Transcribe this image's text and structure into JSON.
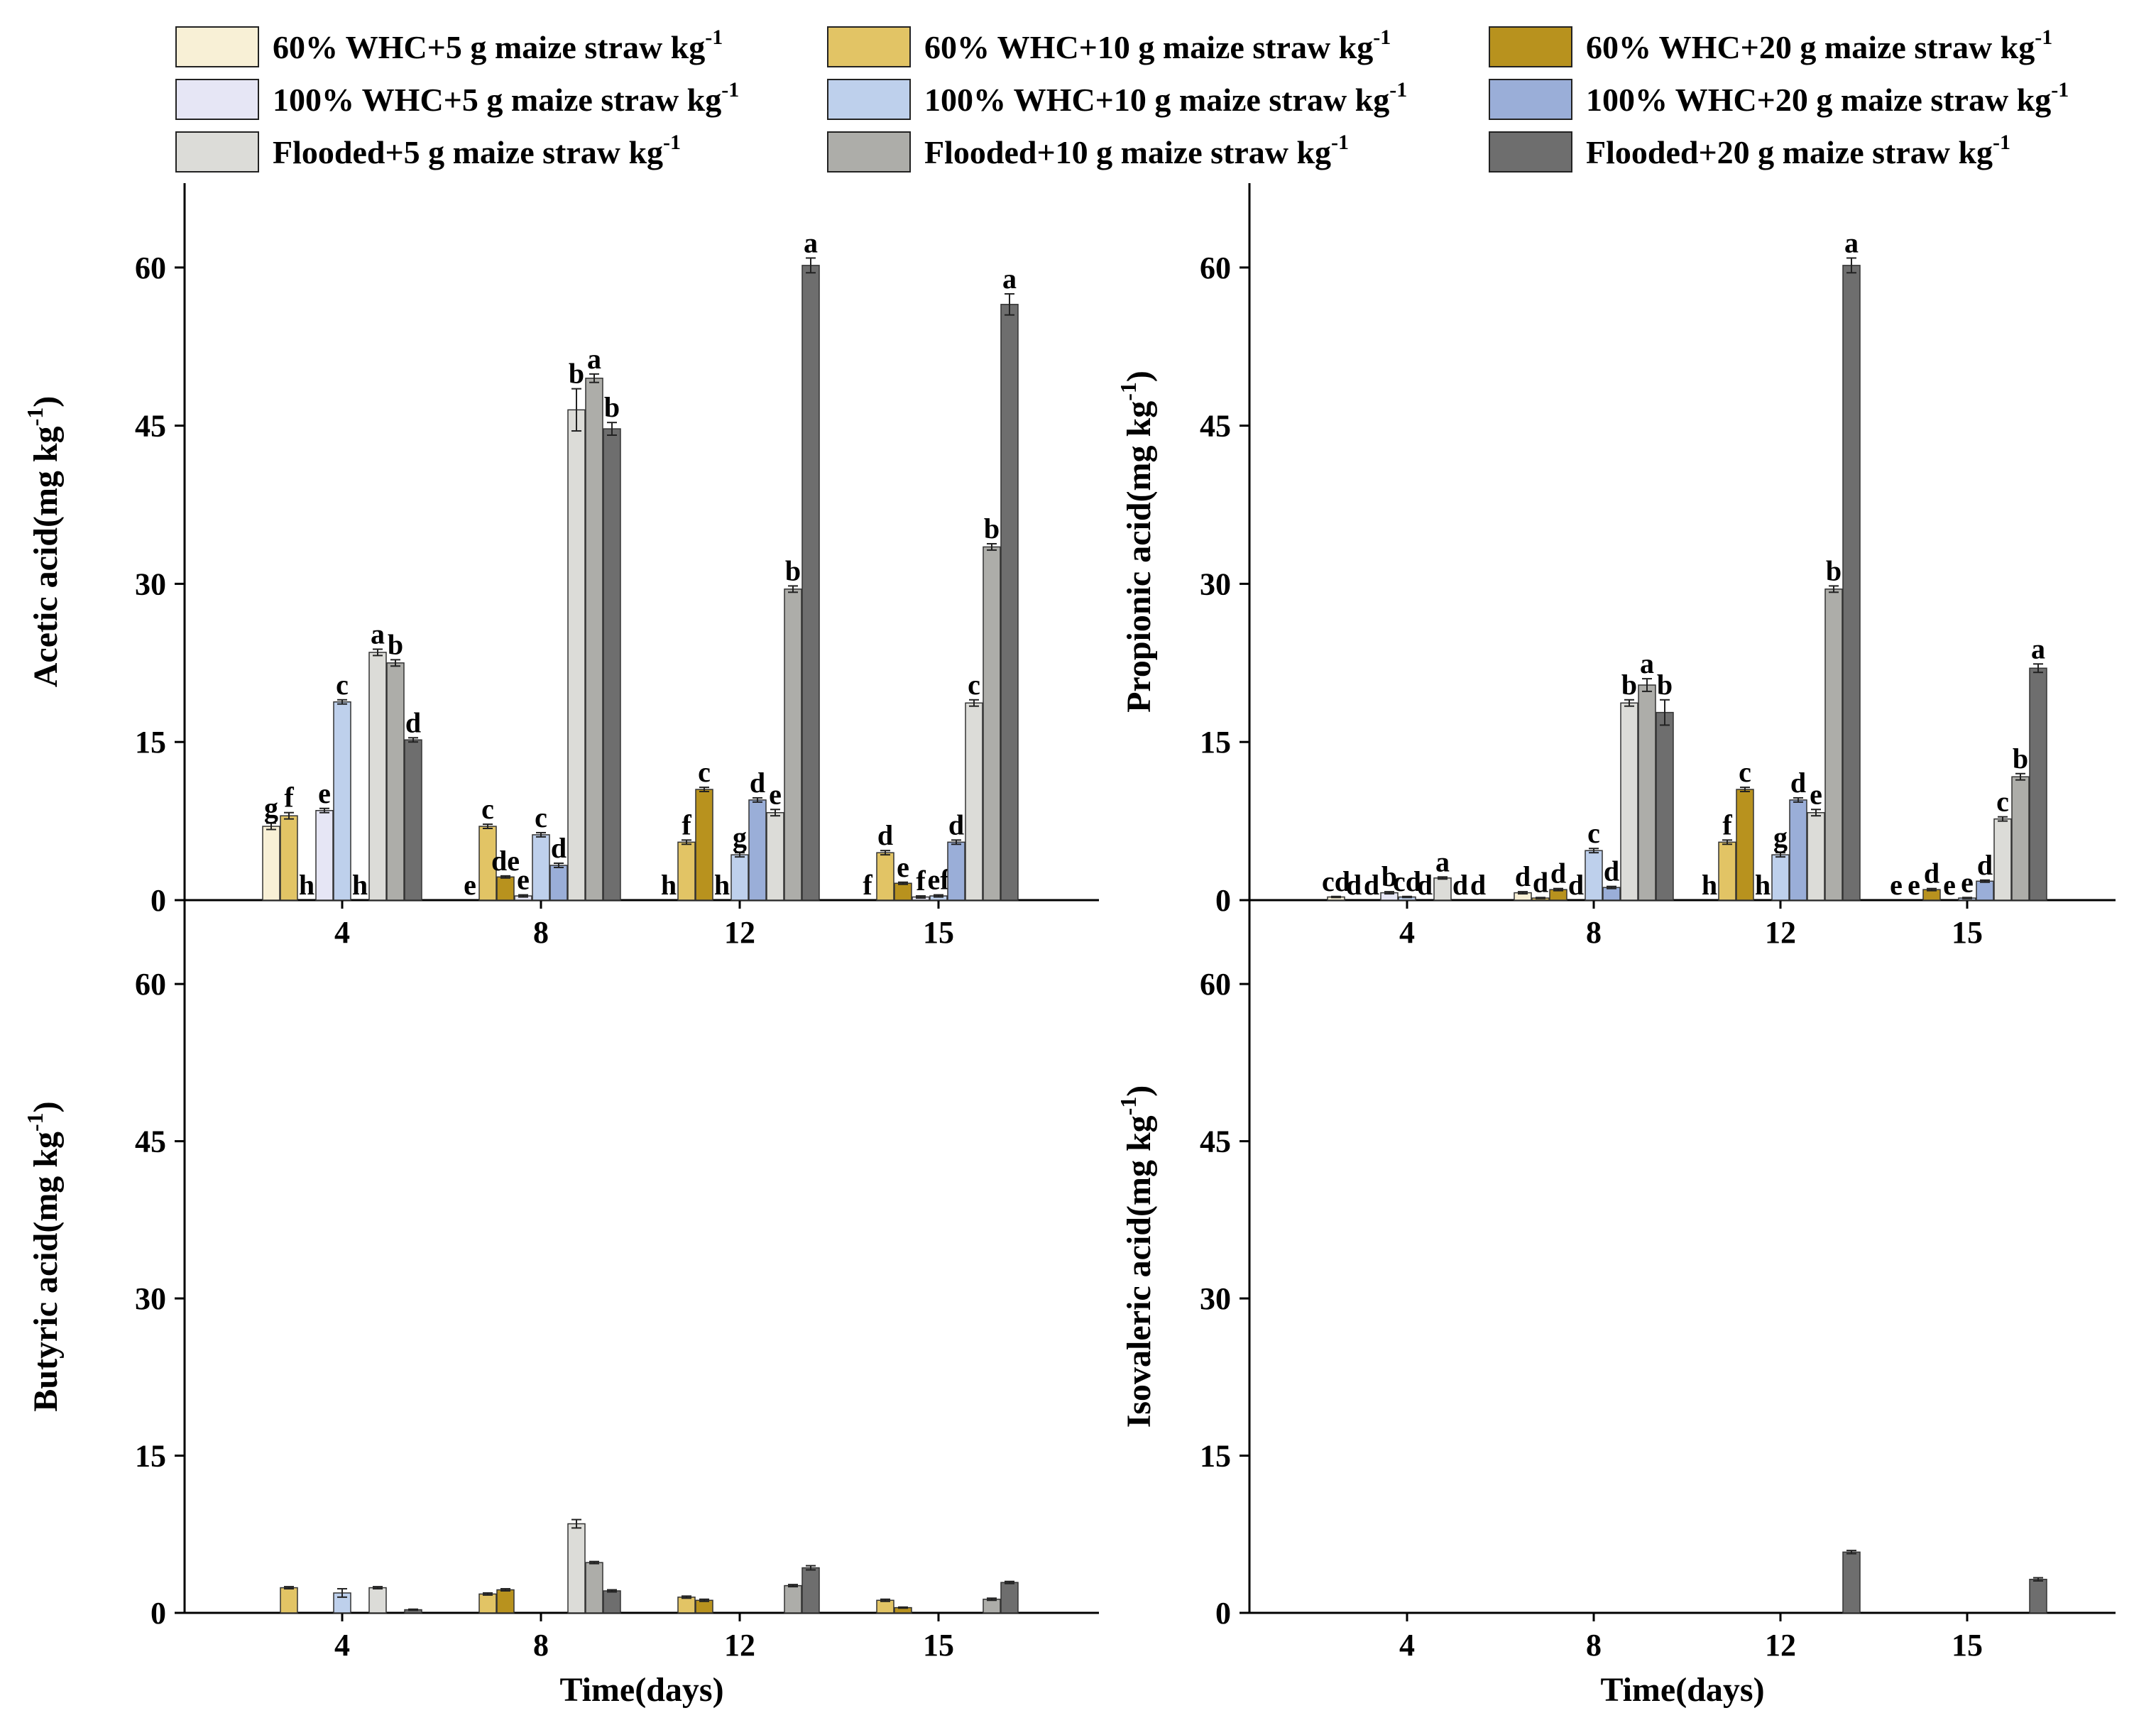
{
  "legend": {
    "items": [
      {
        "label": "60% WHC+5 g maize straw kg",
        "sup": "-1",
        "color": "#F8F0D6"
      },
      {
        "label": "60% WHC+10 g maize straw kg",
        "sup": "-1",
        "color": "#E2C465"
      },
      {
        "label": "60% WHC+20 g maize straw kg",
        "sup": "-1",
        "color": "#B8921E"
      },
      {
        "label": "100% WHC+5 g maize straw kg",
        "sup": "-1",
        "color": "#E6E6F5"
      },
      {
        "label": "100% WHC+10 g maize straw kg",
        "sup": "-1",
        "color": "#BED0EC"
      },
      {
        "label": "100% WHC+20 g maize straw kg",
        "sup": "-1",
        "color": "#9AAED8"
      },
      {
        "label": "Flooded+5 g maize straw kg",
        "sup": "-1",
        "color": "#DCDCD8"
      },
      {
        "label": "Flooded+10 g maize straw kg",
        "sup": "-1",
        "color": "#ADADA9"
      },
      {
        "label": "Flooded+20 g maize straw kg",
        "sup": "-1",
        "color": "#6E6E6E"
      }
    ]
  },
  "chart_data": [
    {
      "type": "bar",
      "panel": "top-left",
      "ylabel": "Acetic acid(mg kg",
      "ylabel_sup": "-1",
      "ylabel_close": ")",
      "xlabel": "",
      "categories": [
        "4",
        "8",
        "12",
        "15"
      ],
      "yticks": [
        "0",
        "15",
        "30",
        "45",
        "60"
      ],
      "ylim": [
        0,
        68
      ],
      "series": [
        {
          "name": "60% WHC+5 g maize straw kg-1",
          "values": [
            7.0,
            0,
            0,
            0
          ],
          "errors": [
            0.3,
            0,
            0,
            0
          ],
          "letters": [
            "g",
            "e",
            "h",
            "f"
          ]
        },
        {
          "name": "60% WHC+10 g maize straw kg-1",
          "values": [
            8.0,
            7.0,
            5.5,
            4.5
          ],
          "errors": [
            0.3,
            0.2,
            0.2,
            0.2
          ],
          "letters": [
            "f",
            "c",
            "f",
            "d"
          ]
        },
        {
          "name": "60% WHC+20 g maize straw kg-1",
          "values": [
            0,
            2.2,
            10.5,
            1.6
          ],
          "errors": [
            0,
            0.1,
            0.2,
            0.1
          ],
          "letters": [
            "h",
            "de",
            "c",
            "e"
          ]
        },
        {
          "name": "100% WHC+5 g maize straw kg-1",
          "values": [
            8.5,
            0.4,
            0,
            0.3
          ],
          "errors": [
            0.2,
            0.1,
            0,
            0.1
          ],
          "letters": [
            "e",
            "e",
            "h",
            "f"
          ]
        },
        {
          "name": "100% WHC+10 g maize straw kg-1",
          "values": [
            18.8,
            6.2,
            4.3,
            0.4
          ],
          "errors": [
            0.2,
            0.2,
            0.2,
            0.1
          ],
          "letters": [
            "c",
            "c",
            "g",
            "ef"
          ]
        },
        {
          "name": "100% WHC+20 g maize straw kg-1",
          "values": [
            0,
            3.3,
            9.5,
            5.5
          ],
          "errors": [
            0,
            0.2,
            0.2,
            0.2
          ],
          "letters": [
            "h",
            "d",
            "d",
            "d"
          ]
        },
        {
          "name": "Flooded+5 g maize straw kg-1",
          "values": [
            23.5,
            46.5,
            8.3,
            18.7
          ],
          "errors": [
            0.3,
            2.0,
            0.3,
            0.3
          ],
          "letters": [
            "a",
            "b",
            "e",
            "c"
          ]
        },
        {
          "name": "Flooded+10 g maize straw kg-1",
          "values": [
            22.5,
            49.5,
            29.5,
            33.5
          ],
          "errors": [
            0.3,
            0.4,
            0.3,
            0.3
          ],
          "letters": [
            "b",
            "a",
            "b",
            "b"
          ]
        },
        {
          "name": "Flooded+20 g maize straw kg-1",
          "values": [
            15.2,
            44.7,
            60.2,
            56.5
          ],
          "errors": [
            0.2,
            0.6,
            0.7,
            1.0
          ],
          "letters": [
            "d",
            "b",
            "a",
            "a"
          ]
        }
      ]
    },
    {
      "type": "bar",
      "panel": "top-right",
      "ylabel": "Propionic acid(mg kg",
      "ylabel_sup": "-1",
      "ylabel_close": ")",
      "xlabel": "",
      "categories": [
        "4",
        "8",
        "12",
        "15"
      ],
      "yticks": [
        "0",
        "15",
        "30",
        "45",
        "60"
      ],
      "ylim": [
        0,
        68
      ],
      "series": [
        {
          "name": "60% WHC+5 g maize straw kg-1",
          "values": [
            0.3,
            0.7,
            0,
            0
          ],
          "errors": [
            0.05,
            0.1,
            0,
            0
          ],
          "letters": [
            "cd",
            "d",
            "h",
            "e"
          ]
        },
        {
          "name": "60% WHC+10 g maize straw kg-1",
          "values": [
            0,
            0.2,
            5.5,
            0
          ],
          "errors": [
            0,
            0.05,
            0.2,
            0
          ],
          "letters": [
            "d",
            "d",
            "f",
            "e"
          ]
        },
        {
          "name": "60% WHC+20 g maize straw kg-1",
          "values": [
            0,
            1.0,
            10.5,
            1.0
          ],
          "errors": [
            0,
            0.1,
            0.2,
            0.1
          ],
          "letters": [
            "d",
            "d",
            "c",
            "d"
          ]
        },
        {
          "name": "100% WHC+5 g maize straw kg-1",
          "values": [
            0.7,
            0,
            0,
            0
          ],
          "errors": [
            0.1,
            0,
            0,
            0
          ],
          "letters": [
            "b",
            "d",
            "h",
            "e"
          ]
        },
        {
          "name": "100% WHC+10 g maize straw kg-1",
          "values": [
            0.3,
            4.7,
            4.3,
            0.2
          ],
          "errors": [
            0.05,
            0.2,
            0.2,
            0.05
          ],
          "letters": [
            "cd",
            "c",
            "g",
            "e"
          ]
        },
        {
          "name": "100% WHC+20 g maize straw kg-1",
          "values": [
            0,
            1.2,
            9.5,
            1.8
          ],
          "errors": [
            0,
            0.1,
            0.2,
            0.1
          ],
          "letters": [
            "d",
            "d",
            "d",
            "d"
          ]
        },
        {
          "name": "Flooded+5 g maize straw kg-1",
          "values": [
            2.1,
            18.7,
            8.3,
            7.7
          ],
          "errors": [
            0.1,
            0.3,
            0.3,
            0.2
          ],
          "letters": [
            "a",
            "b",
            "e",
            "c"
          ]
        },
        {
          "name": "Flooded+10 g maize straw kg-1",
          "values": [
            0,
            20.4,
            29.5,
            11.7
          ],
          "errors": [
            0,
            0.6,
            0.3,
            0.3
          ],
          "letters": [
            "d",
            "a",
            "b",
            "b"
          ]
        },
        {
          "name": "Flooded+20 g maize straw kg-1",
          "values": [
            0,
            17.8,
            60.2,
            22.0
          ],
          "errors": [
            0,
            1.2,
            0.7,
            0.4
          ],
          "letters": [
            "d",
            "b",
            "a",
            "a"
          ]
        }
      ]
    },
    {
      "type": "bar",
      "panel": "bottom-left",
      "ylabel": "Butyric acid(mg kg",
      "ylabel_sup": "-1",
      "ylabel_close": ")",
      "xlabel": "Time(days)",
      "categories": [
        "4",
        "8",
        "12",
        "15"
      ],
      "yticks": [
        "0",
        "15",
        "30",
        "45",
        "60"
      ],
      "ylim": [
        0,
        68
      ],
      "series": [
        {
          "name": "60% WHC+5 g maize straw kg-1",
          "values": [
            0,
            0,
            0,
            0
          ],
          "errors": [
            0,
            0,
            0,
            0
          ],
          "letters": []
        },
        {
          "name": "60% WHC+10 g maize straw kg-1",
          "values": [
            2.4,
            1.8,
            1.5,
            1.2
          ],
          "errors": [
            0.1,
            0.1,
            0.1,
            0.1
          ],
          "letters": []
        },
        {
          "name": "60% WHC+20 g maize straw kg-1",
          "values": [
            0,
            2.2,
            1.2,
            0.5
          ],
          "errors": [
            0,
            0.1,
            0.1,
            0.05
          ],
          "letters": []
        },
        {
          "name": "100% WHC+5 g maize straw kg-1",
          "values": [
            0,
            0,
            0,
            0
          ],
          "errors": [
            0,
            0,
            0,
            0
          ],
          "letters": []
        },
        {
          "name": "100% WHC+10 g maize straw kg-1",
          "values": [
            1.9,
            0,
            0,
            0
          ],
          "errors": [
            0.4,
            0,
            0,
            0
          ],
          "letters": []
        },
        {
          "name": "100% WHC+20 g maize straw kg-1",
          "values": [
            0,
            0,
            0,
            0
          ],
          "errors": [
            0,
            0,
            0,
            0
          ],
          "letters": []
        },
        {
          "name": "Flooded+5 g maize straw kg-1",
          "values": [
            2.4,
            8.5,
            0,
            0
          ],
          "errors": [
            0.1,
            0.4,
            0,
            0
          ],
          "letters": []
        },
        {
          "name": "Flooded+10 g maize straw kg-1",
          "values": [
            0,
            4.8,
            2.6,
            1.3
          ],
          "errors": [
            0,
            0.1,
            0.1,
            0.1
          ],
          "letters": []
        },
        {
          "name": "Flooded+20 g maize straw kg-1",
          "values": [
            0.3,
            2.1,
            4.3,
            2.9
          ],
          "errors": [
            0.05,
            0.1,
            0.2,
            0.1
          ],
          "letters": []
        }
      ]
    },
    {
      "type": "bar",
      "panel": "bottom-right",
      "ylabel": "Isovaleric acid(mg kg",
      "ylabel_sup": "-1",
      "ylabel_close": ")",
      "xlabel": "Time(days)",
      "categories": [
        "4",
        "8",
        "12",
        "15"
      ],
      "yticks": [
        "0",
        "15",
        "30",
        "45",
        "60"
      ],
      "ylim": [
        0,
        68
      ],
      "series": [
        {
          "name": "60% WHC+5 g maize straw kg-1",
          "values": [
            0,
            0,
            0,
            0
          ],
          "errors": [
            0,
            0,
            0,
            0
          ],
          "letters": []
        },
        {
          "name": "60% WHC+10 g maize straw kg-1",
          "values": [
            0,
            0,
            0,
            0
          ],
          "errors": [
            0,
            0,
            0,
            0
          ],
          "letters": []
        },
        {
          "name": "60% WHC+20 g maize straw kg-1",
          "values": [
            0,
            0,
            0,
            0
          ],
          "errors": [
            0,
            0,
            0,
            0
          ],
          "letters": []
        },
        {
          "name": "100% WHC+5 g maize straw kg-1",
          "values": [
            0,
            0,
            0,
            0
          ],
          "errors": [
            0,
            0,
            0,
            0
          ],
          "letters": []
        },
        {
          "name": "100% WHC+10 g maize straw kg-1",
          "values": [
            0,
            0,
            0,
            0
          ],
          "errors": [
            0,
            0,
            0,
            0
          ],
          "letters": []
        },
        {
          "name": "100% WHC+20 g maize straw kg-1",
          "values": [
            0,
            0,
            0,
            0
          ],
          "errors": [
            0,
            0,
            0,
            0
          ],
          "letters": []
        },
        {
          "name": "Flooded+5 g maize straw kg-1",
          "values": [
            0,
            0,
            0,
            0
          ],
          "errors": [
            0,
            0,
            0,
            0
          ],
          "letters": []
        },
        {
          "name": "Flooded+10 g maize straw kg-1",
          "values": [
            0,
            0,
            0,
            0
          ],
          "errors": [
            0,
            0,
            0,
            0
          ],
          "letters": []
        },
        {
          "name": "Flooded+20 g maize straw kg-1",
          "values": [
            0,
            0,
            5.8,
            3.2
          ],
          "errors": [
            0,
            0,
            0.15,
            0.15
          ],
          "letters": []
        }
      ]
    }
  ]
}
